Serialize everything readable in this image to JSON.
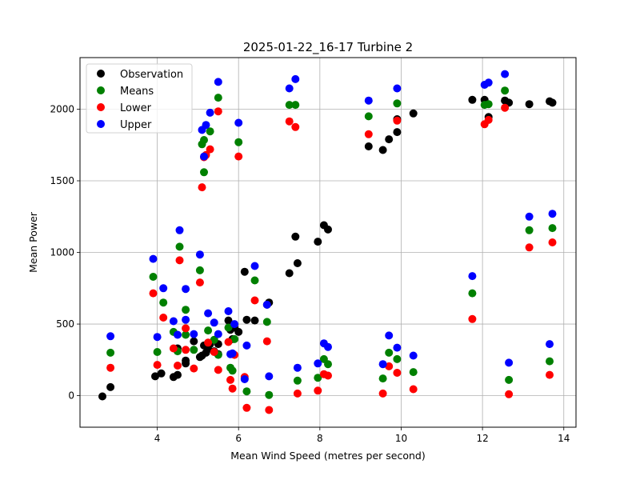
{
  "chart_data": {
    "type": "scatter",
    "title": "2025-01-22_16-17 Turbine 2",
    "xlabel": "Mean Wind Speed (metres per second)",
    "ylabel": "Mean Power",
    "xlim": [
      2.1,
      14.3
    ],
    "ylim": [
      -220,
      2360
    ],
    "xticks": [
      4,
      6,
      8,
      10,
      12,
      14
    ],
    "yticks": [
      0,
      500,
      1000,
      1500,
      2000
    ],
    "grid": true,
    "legend_position": "top-left",
    "colors": {
      "Observation": "#000000",
      "Means": "#008000",
      "Lower": "#ff0000",
      "Upper": "#0000ff"
    },
    "series": [
      {
        "name": "Observation",
        "points": [
          [
            2.65,
            -5
          ],
          [
            2.85,
            60
          ],
          [
            3.95,
            135
          ],
          [
            4.1,
            155
          ],
          [
            4.4,
            130
          ],
          [
            4.5,
            145
          ],
          [
            4.5,
            330
          ],
          [
            4.7,
            225
          ],
          [
            4.7,
            245
          ],
          [
            4.9,
            380
          ],
          [
            5.05,
            270
          ],
          [
            5.1,
            280
          ],
          [
            5.15,
            350
          ],
          [
            5.2,
            300
          ],
          [
            5.25,
            325
          ],
          [
            5.3,
            360
          ],
          [
            5.4,
            310
          ],
          [
            5.5,
            290
          ],
          [
            5.5,
            360
          ],
          [
            5.75,
            525
          ],
          [
            5.8,
            460
          ],
          [
            5.85,
            395
          ],
          [
            5.9,
            475
          ],
          [
            6.0,
            445
          ],
          [
            6.15,
            865
          ],
          [
            6.2,
            530
          ],
          [
            6.4,
            525
          ],
          [
            6.7,
            635
          ],
          [
            6.75,
            650
          ],
          [
            7.25,
            855
          ],
          [
            7.4,
            1110
          ],
          [
            7.45,
            925
          ],
          [
            7.95,
            1075
          ],
          [
            8.1,
            1190
          ],
          [
            8.2,
            1160
          ],
          [
            9.2,
            1740
          ],
          [
            9.55,
            1715
          ],
          [
            9.7,
            1790
          ],
          [
            9.9,
            1840
          ],
          [
            9.9,
            1930
          ],
          [
            10.3,
            1970
          ],
          [
            11.75,
            2065
          ],
          [
            12.05,
            2065
          ],
          [
            12.15,
            1945
          ],
          [
            12.55,
            2060
          ],
          [
            12.65,
            2045
          ],
          [
            13.15,
            2035
          ],
          [
            13.65,
            2055
          ],
          [
            13.72,
            2045
          ]
        ]
      },
      {
        "name": "Means",
        "points": [
          [
            2.85,
            300
          ],
          [
            3.9,
            830
          ],
          [
            4.0,
            305
          ],
          [
            4.15,
            650
          ],
          [
            4.4,
            445
          ],
          [
            4.5,
            310
          ],
          [
            4.55,
            1040
          ],
          [
            4.7,
            600
          ],
          [
            4.7,
            425
          ],
          [
            4.9,
            320
          ],
          [
            5.05,
            875
          ],
          [
            5.1,
            1755
          ],
          [
            5.15,
            1560
          ],
          [
            5.15,
            1785
          ],
          [
            5.25,
            455
          ],
          [
            5.3,
            1845
          ],
          [
            5.4,
            390
          ],
          [
            5.5,
            2080
          ],
          [
            5.5,
            285
          ],
          [
            5.75,
            475
          ],
          [
            5.8,
            195
          ],
          [
            5.85,
            175
          ],
          [
            5.9,
            395
          ],
          [
            6.0,
            1770
          ],
          [
            6.15,
            120
          ],
          [
            6.2,
            30
          ],
          [
            6.4,
            805
          ],
          [
            6.7,
            515
          ],
          [
            6.75,
            5
          ],
          [
            7.25,
            2030
          ],
          [
            7.4,
            2030
          ],
          [
            7.45,
            105
          ],
          [
            7.95,
            125
          ],
          [
            8.1,
            255
          ],
          [
            8.2,
            220
          ],
          [
            9.2,
            1950
          ],
          [
            9.55,
            120
          ],
          [
            9.7,
            300
          ],
          [
            9.9,
            2040
          ],
          [
            9.9,
            255
          ],
          [
            10.3,
            165
          ],
          [
            11.75,
            715
          ],
          [
            12.05,
            2030
          ],
          [
            12.15,
            2035
          ],
          [
            12.55,
            2130
          ],
          [
            12.65,
            110
          ],
          [
            13.15,
            1155
          ],
          [
            13.65,
            240
          ],
          [
            13.72,
            1170
          ]
        ]
      },
      {
        "name": "Lower",
        "points": [
          [
            2.85,
            195
          ],
          [
            3.9,
            715
          ],
          [
            4.0,
            215
          ],
          [
            4.15,
            545
          ],
          [
            4.4,
            330
          ],
          [
            4.5,
            210
          ],
          [
            4.55,
            945
          ],
          [
            4.7,
            470
          ],
          [
            4.7,
            320
          ],
          [
            4.9,
            190
          ],
          [
            5.05,
            790
          ],
          [
            5.1,
            1455
          ],
          [
            5.15,
            1665
          ],
          [
            5.2,
            1680
          ],
          [
            5.25,
            370
          ],
          [
            5.3,
            1720
          ],
          [
            5.4,
            305
          ],
          [
            5.5,
            1985
          ],
          [
            5.5,
            180
          ],
          [
            5.75,
            375
          ],
          [
            5.8,
            110
          ],
          [
            5.85,
            50
          ],
          [
            5.9,
            285
          ],
          [
            6.0,
            1670
          ],
          [
            6.15,
            130
          ],
          [
            6.2,
            -85
          ],
          [
            6.4,
            665
          ],
          [
            6.7,
            380
          ],
          [
            6.75,
            -100
          ],
          [
            7.25,
            1915
          ],
          [
            7.4,
            1875
          ],
          [
            7.45,
            15
          ],
          [
            7.95,
            35
          ],
          [
            8.1,
            150
          ],
          [
            8.2,
            140
          ],
          [
            9.2,
            1825
          ],
          [
            9.55,
            15
          ],
          [
            9.7,
            205
          ],
          [
            9.9,
            1920
          ],
          [
            9.9,
            160
          ],
          [
            10.3,
            45
          ],
          [
            11.75,
            535
          ],
          [
            12.05,
            1895
          ],
          [
            12.15,
            1925
          ],
          [
            12.55,
            2010
          ],
          [
            12.65,
            10
          ],
          [
            13.15,
            1035
          ],
          [
            13.65,
            145
          ],
          [
            13.72,
            1070
          ]
        ]
      },
      {
        "name": "Upper",
        "points": [
          [
            2.85,
            415
          ],
          [
            3.9,
            955
          ],
          [
            4.0,
            410
          ],
          [
            4.15,
            750
          ],
          [
            4.4,
            520
          ],
          [
            4.5,
            425
          ],
          [
            4.55,
            1155
          ],
          [
            4.7,
            745
          ],
          [
            4.7,
            530
          ],
          [
            4.9,
            430
          ],
          [
            5.05,
            985
          ],
          [
            5.1,
            1855
          ],
          [
            5.15,
            1670
          ],
          [
            5.2,
            1890
          ],
          [
            5.25,
            575
          ],
          [
            5.3,
            1975
          ],
          [
            5.4,
            510
          ],
          [
            5.5,
            2190
          ],
          [
            5.5,
            430
          ],
          [
            5.75,
            590
          ],
          [
            5.8,
            290
          ],
          [
            5.85,
            295
          ],
          [
            5.9,
            500
          ],
          [
            6.0,
            1905
          ],
          [
            6.15,
            115
          ],
          [
            6.2,
            350
          ],
          [
            6.4,
            905
          ],
          [
            6.7,
            635
          ],
          [
            6.75,
            135
          ],
          [
            7.25,
            2145
          ],
          [
            7.4,
            2210
          ],
          [
            7.45,
            195
          ],
          [
            7.95,
            225
          ],
          [
            8.1,
            365
          ],
          [
            8.2,
            340
          ],
          [
            9.2,
            2060
          ],
          [
            9.55,
            220
          ],
          [
            9.7,
            420
          ],
          [
            9.9,
            2145
          ],
          [
            9.9,
            335
          ],
          [
            10.3,
            280
          ],
          [
            11.75,
            835
          ],
          [
            12.05,
            2170
          ],
          [
            12.15,
            2185
          ],
          [
            12.55,
            2245
          ],
          [
            12.65,
            230
          ],
          [
            13.15,
            1250
          ],
          [
            13.65,
            360
          ],
          [
            13.72,
            1270
          ]
        ]
      }
    ]
  }
}
